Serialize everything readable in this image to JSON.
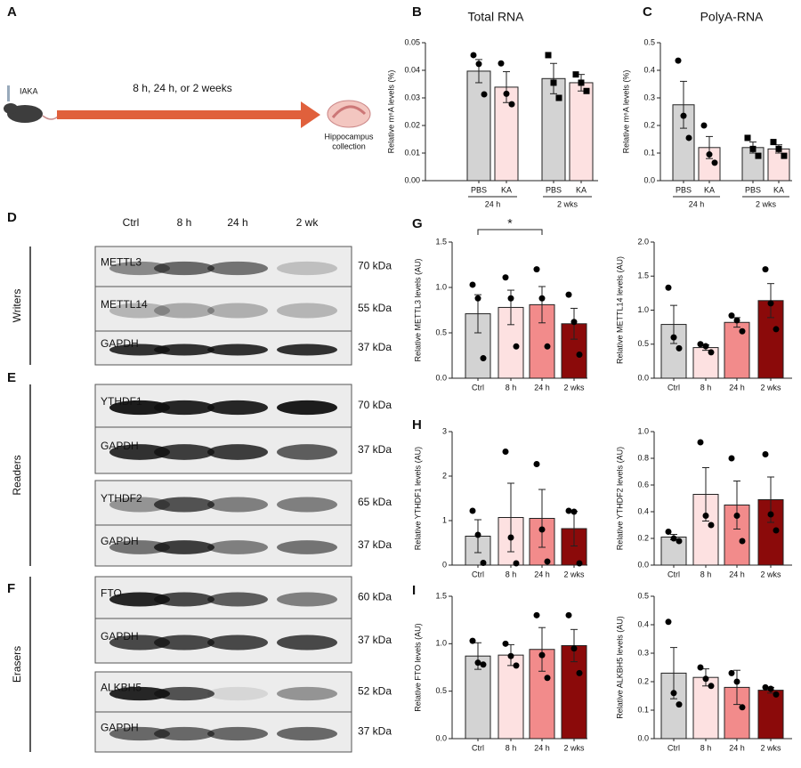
{
  "panel_labels": [
    "A",
    "B",
    "C",
    "D",
    "E",
    "F",
    "G",
    "H",
    "I"
  ],
  "schematic": {
    "injection": "IAKA",
    "timeline": "8 h, 24 h, or 2 weeks",
    "endpoint": [
      "Hippocampus",
      "collection"
    ]
  },
  "blots": {
    "lanes": [
      "Ctrl",
      "8 h",
      "24 h",
      "2 wk"
    ],
    "groups": [
      {
        "label": "Writers",
        "rows": [
          {
            "protein": "METTL3",
            "size": "70 kDa"
          },
          {
            "protein": "METTL14",
            "size": "55 kDa"
          },
          {
            "protein": "GAPDH",
            "size": "37 kDa"
          }
        ]
      },
      {
        "label": "Readers",
        "rows": [
          {
            "protein": "YTHDF1",
            "size": "70 kDa"
          },
          {
            "protein": "GAPDH",
            "size": "37 kDa"
          },
          {
            "protein": "YTHDF2",
            "size": "65 kDa"
          },
          {
            "protein": "GAPDH",
            "size": "37 kDa"
          }
        ]
      },
      {
        "label": "Erasers",
        "rows": [
          {
            "protein": "FTO",
            "size": "60 kDa"
          },
          {
            "protein": "GAPDH",
            "size": "37 kDa"
          },
          {
            "protein": "ALKBH5",
            "size": "52 kDa"
          },
          {
            "protein": "GAPDH",
            "size": "37 kDa"
          }
        ]
      }
    ]
  },
  "chart_data": [
    {
      "type": "bar",
      "title": "Total RNA",
      "y_label": "Relative m⁶A levels (%)",
      "categories": [
        "PBS",
        "KA",
        "PBS",
        "KA"
      ],
      "group_labels": [
        "24 h",
        "2 wks"
      ],
      "values": [
        0.0397,
        0.0339,
        0.037,
        0.0355
      ],
      "errors": [
        0.0042,
        0.0056,
        0.0055,
        0.003
      ],
      "points": [
        [
          0.0455,
          0.0423,
          0.0313
        ],
        [
          0.0425,
          0.0315,
          0.0277
        ],
        [
          0.0455,
          0.0355,
          0.03
        ],
        [
          0.0385,
          0.0355,
          0.0325
        ]
      ],
      "markers": [
        "circle",
        "circle",
        "square",
        "square"
      ],
      "colors": [
        "#d3d3d3",
        "#fde1e1",
        "#d3d3d3",
        "#fde1e1"
      ],
      "ylim": [
        0,
        0.05
      ],
      "yticks": [
        {
          "value": 0,
          "label": "0.00"
        },
        0.01,
        0.02,
        0.03,
        0.04,
        0.05
      ]
    },
    {
      "type": "bar",
      "title": "PolyA-RNA",
      "y_label": "Relative m⁶A levels (%)",
      "categories": [
        "PBS",
        "KA",
        "PBS",
        "KA"
      ],
      "group_labels": [
        "24 h",
        "2 wks"
      ],
      "values": [
        0.275,
        0.12,
        0.12,
        0.115
      ],
      "errors": [
        0.085,
        0.04,
        0.02,
        0.015
      ],
      "points": [
        [
          0.435,
          0.235,
          0.155
        ],
        [
          0.2,
          0.095,
          0.065
        ],
        [
          0.155,
          0.115,
          0.09
        ],
        [
          0.14,
          0.115,
          0.09
        ]
      ],
      "markers": [
        "circle",
        "circle",
        "square",
        "square"
      ],
      "colors": [
        "#d3d3d3",
        "#fde1e1",
        "#d3d3d3",
        "#fde1e1"
      ],
      "ylim": [
        0,
        0.5
      ],
      "yticks": [
        {
          "value": 0,
          "label": "0.0"
        },
        0.1,
        0.2,
        0.3,
        0.4,
        0.5
      ]
    },
    {
      "type": "bar",
      "y_label": "Relative METTL3 levels (AU)",
      "annotation": "*",
      "categories": [
        "Ctrl",
        "8 h",
        "24 h",
        "2 wks"
      ],
      "values": [
        0.71,
        0.78,
        0.81,
        0.6
      ],
      "errors": [
        0.21,
        0.19,
        0.2,
        0.17
      ],
      "points": [
        [
          1.03,
          0.88,
          0.22
        ],
        [
          1.11,
          0.88,
          0.35
        ],
        [
          1.2,
          0.88,
          0.35
        ],
        [
          0.92,
          0.62,
          0.26
        ]
      ],
      "colors": [
        "#d3d3d3",
        "#fde1e1",
        "#f28b8b",
        "#8b0a0a"
      ],
      "ylim": [
        0,
        1.5
      ],
      "yticks": [
        {
          "value": 0,
          "label": "0.0"
        },
        0.5,
        {
          "value": 1,
          "label": "1.0"
        },
        1.5
      ]
    },
    {
      "type": "bar",
      "y_label": "Relative METTL14 levels (AU)",
      "categories": [
        "Ctrl",
        "8 h",
        "24 h",
        "2 wks"
      ],
      "values": [
        0.79,
        0.45,
        0.82,
        1.14
      ],
      "errors": [
        0.28,
        0.04,
        0.07,
        0.25
      ],
      "points": [
        [
          1.33,
          0.6,
          0.44
        ],
        [
          0.5,
          0.47,
          0.38
        ],
        [
          0.92,
          0.85,
          0.69
        ],
        [
          1.6,
          1.1,
          0.72
        ]
      ],
      "colors": [
        "#d3d3d3",
        "#fde1e1",
        "#f28b8b",
        "#8b0a0a"
      ],
      "ylim": [
        0,
        2
      ],
      "yticks": [
        {
          "value": 0,
          "label": "0.0"
        },
        0.5,
        {
          "value": 1,
          "label": "1.0"
        },
        1.5,
        {
          "value": 2,
          "label": "2.0"
        }
      ]
    },
    {
      "type": "bar",
      "y_label": "Relative YTHDF1 levels (AU)",
      "categories": [
        "Ctrl",
        "8 h",
        "24 h",
        "2 wks"
      ],
      "values": [
        0.65,
        1.07,
        1.05,
        0.82
      ],
      "errors": [
        0.37,
        0.77,
        0.65,
        0.39
      ],
      "points": [
        [
          1.22,
          0.68,
          0.05
        ],
        [
          2.55,
          0.62,
          0.04
        ],
        [
          2.27,
          0.8,
          0.08
        ],
        [
          1.22,
          1.2,
          0.04
        ]
      ],
      "colors": [
        "#d3d3d3",
        "#fde1e1",
        "#f28b8b",
        "#8b0a0a"
      ],
      "ylim": [
        0,
        3
      ],
      "yticks": [
        0,
        1,
        2,
        3
      ]
    },
    {
      "type": "bar",
      "y_label": "Relative YTHDF2 levels (AU)",
      "categories": [
        "Ctrl",
        "8 h",
        "24 h",
        "2 wks"
      ],
      "values": [
        0.21,
        0.53,
        0.45,
        0.49
      ],
      "errors": [
        0.02,
        0.2,
        0.18,
        0.17
      ],
      "points": [
        [
          0.25,
          0.2,
          0.18
        ],
        [
          0.92,
          0.37,
          0.3
        ],
        [
          0.8,
          0.37,
          0.18
        ],
        [
          0.83,
          0.38,
          0.26
        ]
      ],
      "colors": [
        "#d3d3d3",
        "#fde1e1",
        "#f28b8b",
        "#8b0a0a"
      ],
      "ylim": [
        0,
        1
      ],
      "yticks": [
        {
          "value": 0,
          "label": "0.0"
        },
        0.2,
        0.4,
        0.6,
        0.8,
        {
          "value": 1,
          "label": "1.0"
        }
      ]
    },
    {
      "type": "bar",
      "y_label": "Relative FTO levels (AU)",
      "categories": [
        "Ctrl",
        "8 h",
        "24 h",
        "2 wks"
      ],
      "values": [
        0.87,
        0.88,
        0.94,
        0.98
      ],
      "errors": [
        0.14,
        0.11,
        0.23,
        0.17
      ],
      "points": [
        [
          1.03,
          0.8,
          0.78
        ],
        [
          1.0,
          0.87,
          0.77
        ],
        [
          1.3,
          0.88,
          0.64
        ],
        [
          1.3,
          0.95,
          0.69
        ]
      ],
      "colors": [
        "#d3d3d3",
        "#fde1e1",
        "#f28b8b",
        "#8b0a0a"
      ],
      "ylim": [
        0,
        1.5
      ],
      "yticks": [
        {
          "value": 0,
          "label": "0.0"
        },
        0.5,
        {
          "value": 1,
          "label": "1.0"
        },
        1.5
      ]
    },
    {
      "type": "bar",
      "y_label": "Relative ALKBH5 levels (AU)",
      "categories": [
        "Ctrl",
        "8 h",
        "24 h",
        "2 wks"
      ],
      "values": [
        0.23,
        0.215,
        0.18,
        0.17
      ],
      "errors": [
        0.09,
        0.03,
        0.06,
        0.01
      ],
      "points": [
        [
          0.41,
          0.16,
          0.12
        ],
        [
          0.25,
          0.21,
          0.185
        ],
        [
          0.23,
          0.2,
          0.11
        ],
        [
          0.18,
          0.175,
          0.155
        ]
      ],
      "colors": [
        "#d3d3d3",
        "#fde1e1",
        "#f28b8b",
        "#8b0a0a"
      ],
      "ylim": [
        0,
        0.5
      ],
      "yticks": [
        {
          "value": 0,
          "label": "0.0"
        },
        0.1,
        0.2,
        0.3,
        0.4,
        0.5
      ]
    }
  ]
}
